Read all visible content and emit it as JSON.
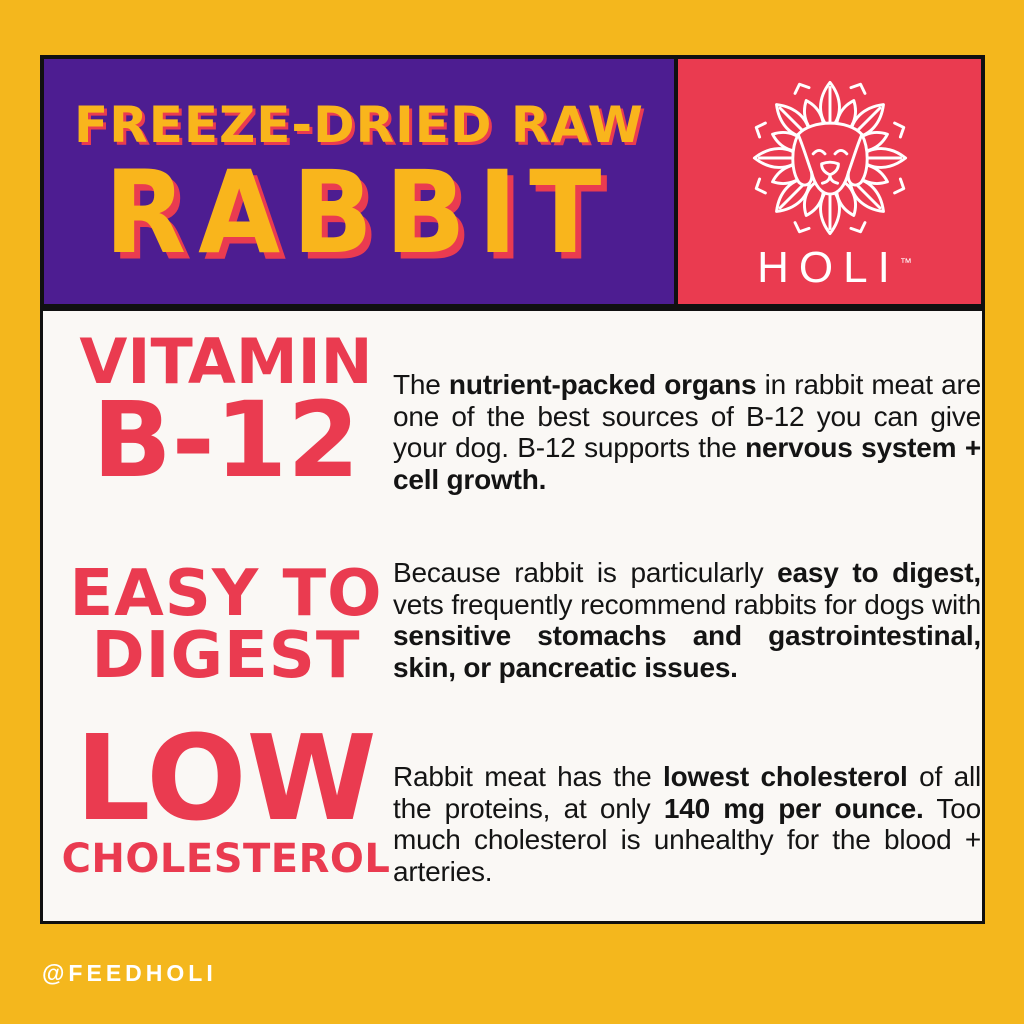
{
  "colors": {
    "background": "#F4B71D",
    "banner_purple": "#4D1D91",
    "brand_red": "#EA3B50",
    "title_yellow": "#F9B51C",
    "panel_white": "#FAF8F5",
    "text_black": "#141414",
    "border_black": "#101010",
    "handle_white": "#FFFFFF"
  },
  "banner": {
    "subtitle": "FREEZE-DRIED RAW",
    "title": "RABBIT"
  },
  "logo": {
    "icon": "holi-mandala-dog-icon",
    "brand": "HOLI",
    "trademark": "™"
  },
  "sections": [
    {
      "id": "vitamin-b12",
      "heading_line1": "VITAMIN",
      "heading_line2": "B-12",
      "paragraph": [
        {
          "t": "The ",
          "b": false
        },
        {
          "t": "nutrient-packed organs",
          "b": true
        },
        {
          "t": " in rabbit meat are one of the best sources of B-12 you can give your dog. B-12 supports the ",
          "b": false
        },
        {
          "t": "nervous system + cell growth.",
          "b": true
        }
      ]
    },
    {
      "id": "easy-to-digest",
      "heading_line1": "EASY TO",
      "heading_line2": "DIGEST",
      "paragraph": [
        {
          "t": "Because rabbit is particularly ",
          "b": false
        },
        {
          "t": "easy to digest,",
          "b": true
        },
        {
          "t": " vets frequently recommend rabbits for dogs with ",
          "b": false
        },
        {
          "t": "sensitive stomachs and gastrointestinal, skin, or pancreatic issues.",
          "b": true
        }
      ]
    },
    {
      "id": "low-cholesterol",
      "heading_line1": "LOW",
      "heading_line2": "CHOLESTEROL",
      "paragraph": [
        {
          "t": "Rabbit meat has the ",
          "b": false
        },
        {
          "t": "lowest cholesterol",
          "b": true
        },
        {
          "t": " of all the proteins, at only ",
          "b": false
        },
        {
          "t": "140 mg per ounce.",
          "b": true
        },
        {
          "t": " Too much cholesterol is unhealthy for the blood + arteries.",
          "b": false
        }
      ]
    }
  ],
  "footer": {
    "handle": "@FEEDHOLI"
  }
}
